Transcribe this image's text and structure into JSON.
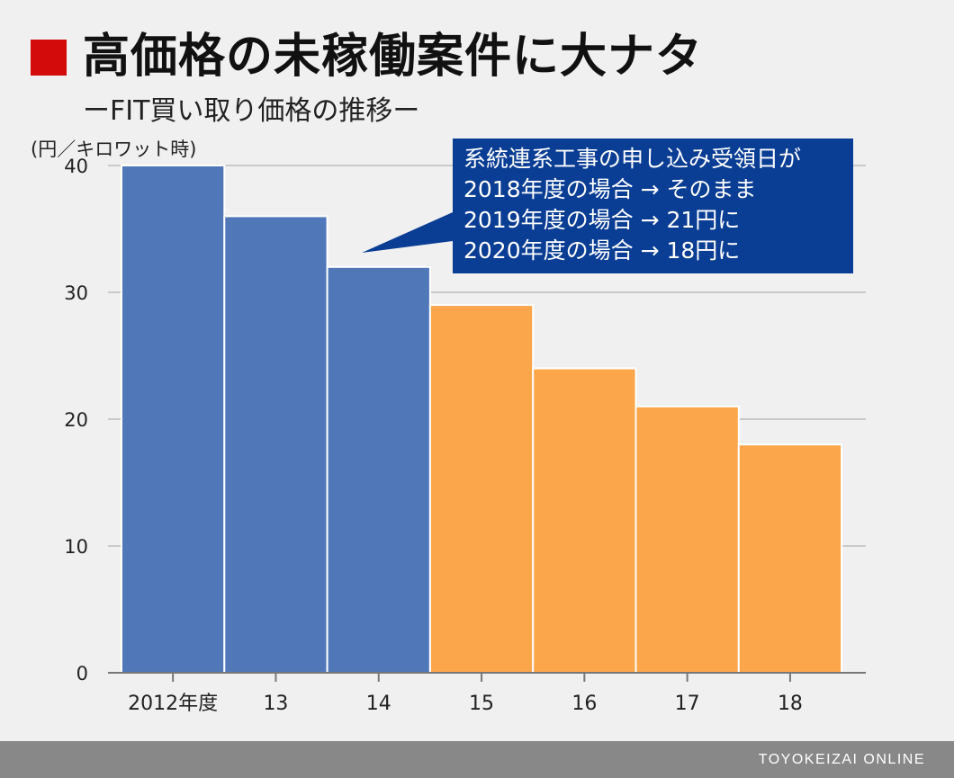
{
  "title": "高価格の未稼働案件に大ナタ",
  "subtitle": "ーFIT買い取り価格の推移ー",
  "colors": {
    "title_marker": "#d40b0b",
    "bar_past": "#5078b9",
    "bar_recent": "#fca64b",
    "callout_bg": "#0a3d94",
    "gridline": "#bdbdbd",
    "axis": "#777777",
    "footer_bg": "#888888",
    "background": "#f0f0f0"
  },
  "callout": {
    "lines": [
      "系統連系工事の申し込み受領日が",
      "2018年度の場合 → そのまま",
      "2019年度の場合 → 21円に",
      "2020年度の場合 → 18円に"
    ]
  },
  "footer": {
    "brand": "TOYOKEIZAI ONLINE"
  },
  "chart_data": {
    "type": "bar",
    "ylabel": "(円／キロワット時)",
    "xlabel": "",
    "categories": [
      "2012年度",
      "13",
      "14",
      "15",
      "16",
      "17",
      "18"
    ],
    "values": [
      40,
      36,
      32,
      29,
      24,
      21,
      18
    ],
    "bar_color_groups": [
      "past",
      "past",
      "past",
      "recent",
      "recent",
      "recent",
      "recent"
    ],
    "ylim": [
      0,
      40
    ],
    "yticks": [
      0,
      10,
      20,
      30,
      40
    ],
    "grid": true,
    "legend": "none"
  }
}
